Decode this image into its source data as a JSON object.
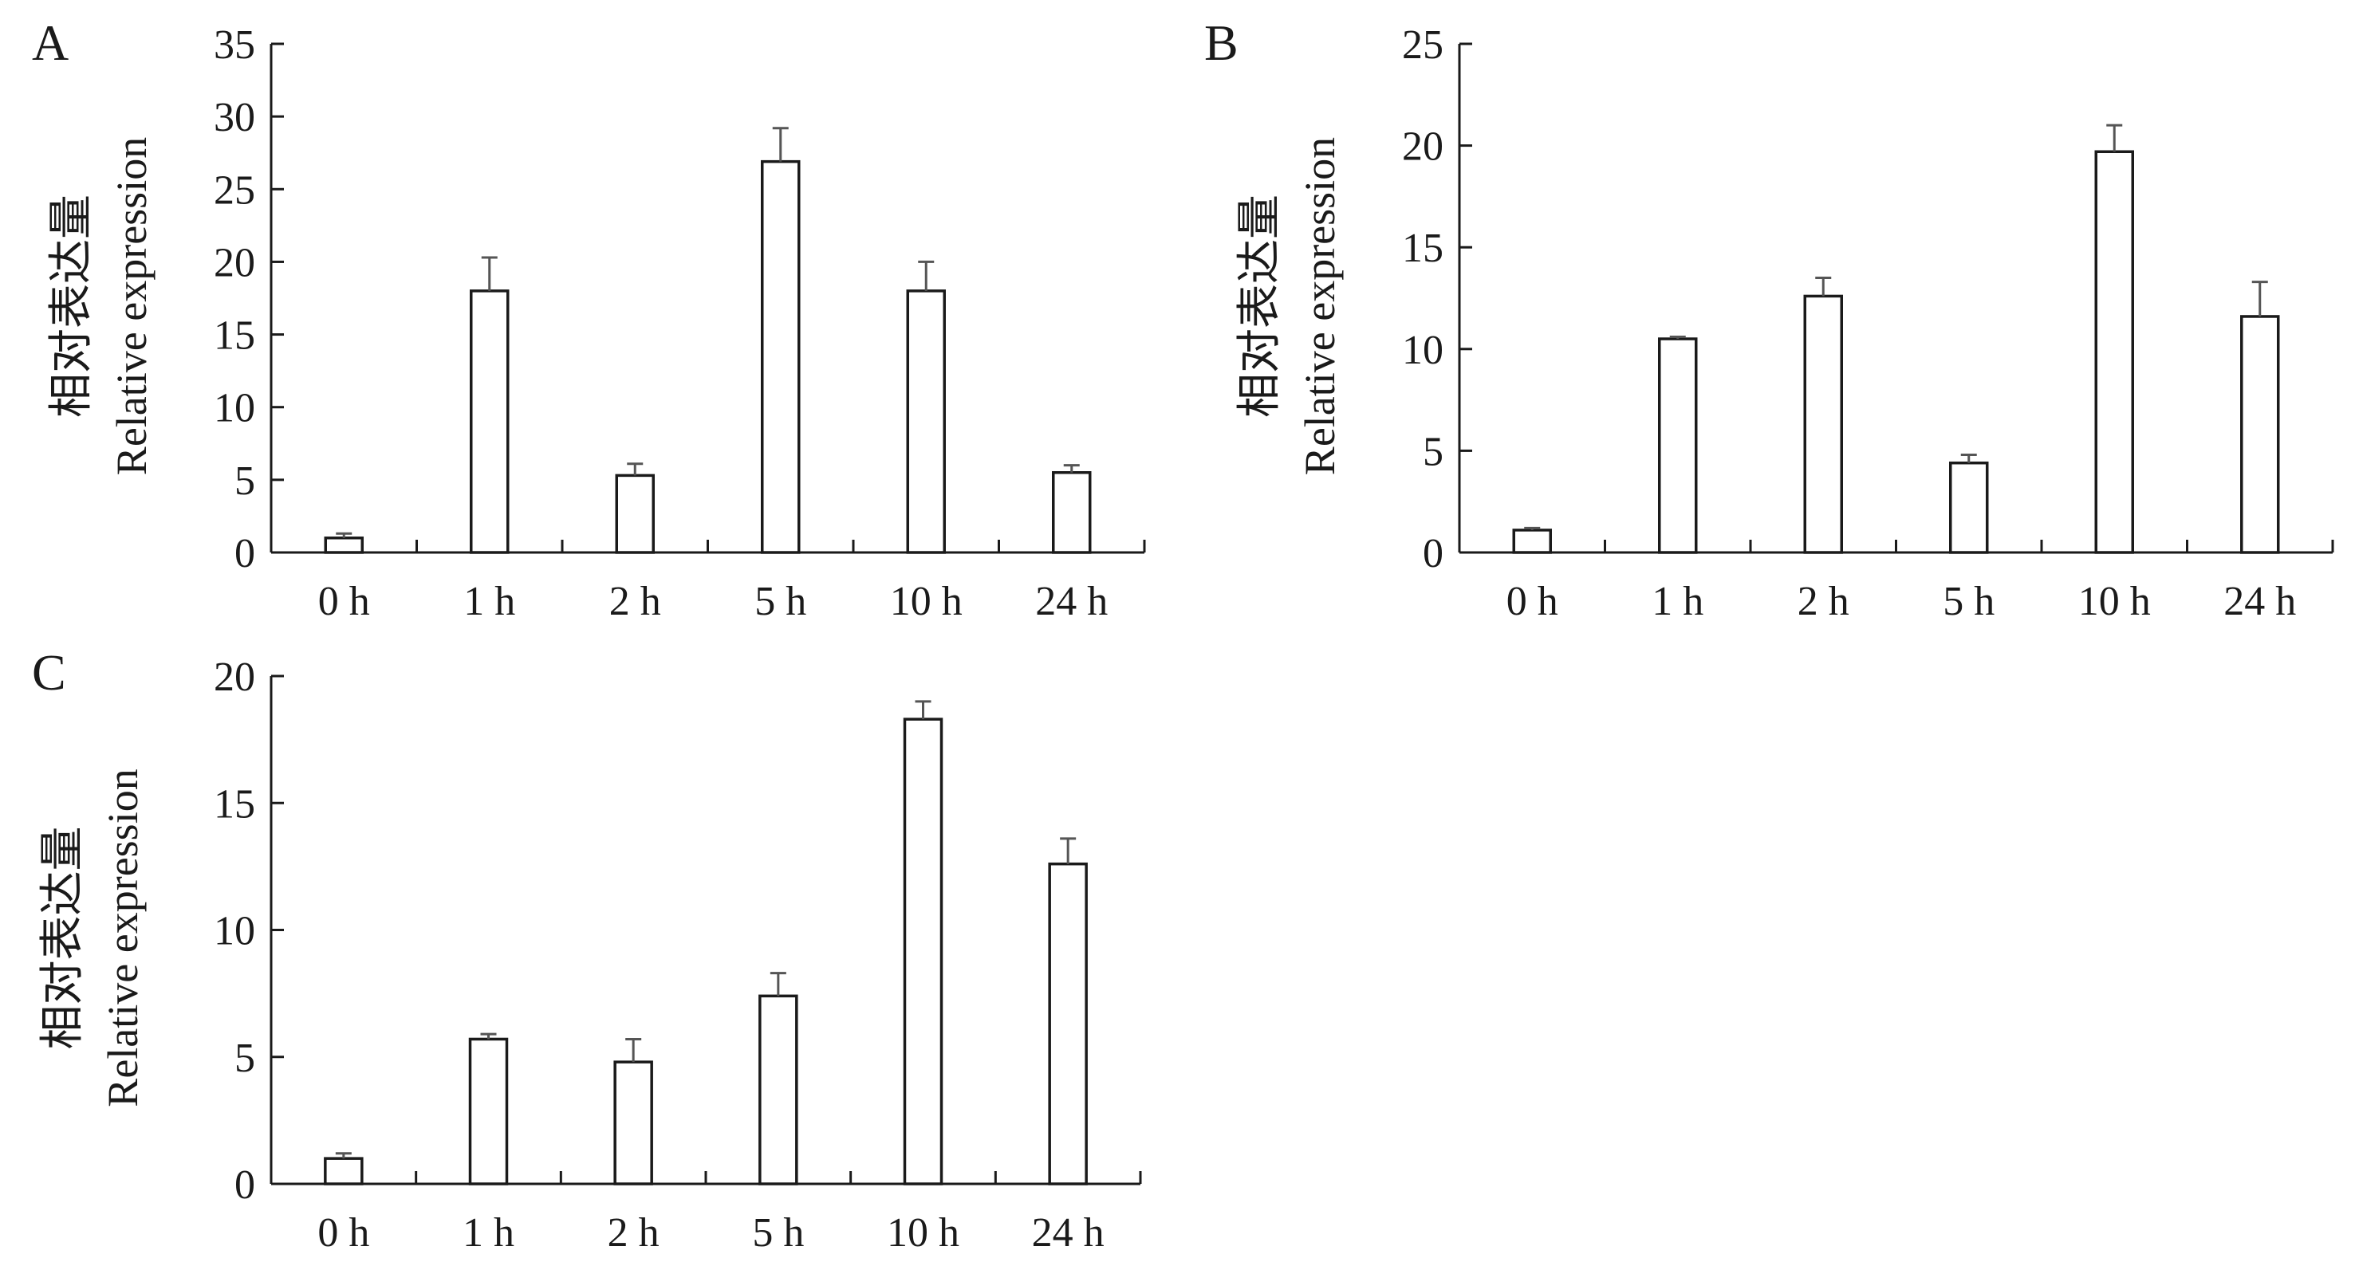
{
  "chart_data": [
    {
      "panel_label": "A",
      "type": "bar",
      "categories": [
        "0 h",
        "1 h",
        "2 h",
        "5 h",
        "10 h",
        "24 h"
      ],
      "values": [
        1.0,
        18.0,
        5.3,
        26.9,
        18.0,
        5.5
      ],
      "errors": [
        0.3,
        2.3,
        0.8,
        2.3,
        2.0,
        0.5
      ],
      "ylabel_cn": "相对表达量",
      "ylabel": "Relative expression",
      "ylim": [
        0,
        35
      ],
      "yticks": [
        "0",
        "5",
        "10",
        "15",
        "20",
        "25",
        "30",
        "35"
      ],
      "grid": false,
      "bar_fill": "#ffffff",
      "bar_stroke": "#1a1a1a"
    },
    {
      "panel_label": "B",
      "type": "bar",
      "categories": [
        "0 h",
        "1 h",
        "2 h",
        "5 h",
        "10 h",
        "24 h"
      ],
      "values": [
        1.1,
        10.5,
        12.6,
        4.4,
        19.7,
        11.6
      ],
      "errors": [
        0.1,
        0.1,
        0.9,
        0.4,
        1.3,
        1.7
      ],
      "ylabel_cn": "相对表达量",
      "ylabel": "Relative expression",
      "ylim": [
        0,
        25
      ],
      "yticks": [
        "0",
        "5",
        "10",
        "15",
        "20",
        "25"
      ],
      "grid": false,
      "bar_fill": "#ffffff",
      "bar_stroke": "#1a1a1a"
    },
    {
      "panel_label": "C",
      "type": "bar",
      "categories": [
        "0 h",
        "1 h",
        "2 h",
        "5 h",
        "10 h",
        "24 h"
      ],
      "values": [
        1.0,
        5.7,
        4.8,
        7.4,
        18.3,
        12.6
      ],
      "errors": [
        0.2,
        0.2,
        0.9,
        0.9,
        0.7,
        1.0
      ],
      "ylabel_cn": "相对表达量",
      "ylabel": "Relative expression",
      "ylim": [
        0,
        20
      ],
      "yticks": [
        "0",
        "5",
        "10",
        "15",
        "20"
      ],
      "grid": false,
      "bar_fill": "#ffffff",
      "bar_stroke": "#1a1a1a"
    }
  ]
}
